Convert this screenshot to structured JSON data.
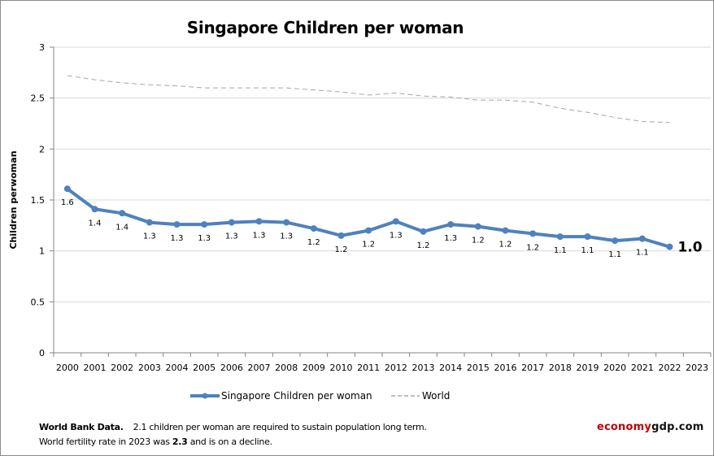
{
  "chart_data": {
    "type": "line",
    "title": "Singapore Children per woman",
    "xlabel": "",
    "ylabel": "Children perwoman",
    "ylim": [
      0,
      3
    ],
    "y_ticks": [
      "0",
      "0.5",
      "1",
      "1.5",
      "2",
      "2.5",
      "3"
    ],
    "y_tick_values": [
      0,
      0.5,
      1,
      1.5,
      2,
      2.5,
      3
    ],
    "grid": true,
    "legend_position": "bottom",
    "categories": [
      "2000",
      "2001",
      "2002",
      "2003",
      "2004",
      "2005",
      "2006",
      "2007",
      "2008",
      "2009",
      "2010",
      "2011",
      "2012",
      "2013",
      "2014",
      "2015",
      "2016",
      "2017",
      "2018",
      "2019",
      "2020",
      "2021",
      "2022",
      "2023"
    ],
    "series": [
      {
        "name": "Singapore Children per woman",
        "color": "#4f81bd",
        "style": "solid-markers",
        "values": [
          1.61,
          1.41,
          1.37,
          1.28,
          1.26,
          1.26,
          1.28,
          1.29,
          1.28,
          1.22,
          1.15,
          1.2,
          1.29,
          1.19,
          1.26,
          1.24,
          1.2,
          1.17,
          1.14,
          1.14,
          1.1,
          1.12,
          1.04,
          null
        ],
        "data_labels": [
          "1.6",
          "1.4",
          "1.4",
          "1.3",
          "1.3",
          "1.3",
          "1.3",
          "1.3",
          "1.3",
          "1.2",
          "1.2",
          "1.2",
          "1.3",
          "1.2",
          "1.3",
          "1.2",
          "1.2",
          "1.2",
          "1.1",
          "1.1",
          "1.1",
          "1.1",
          "1.0",
          ""
        ]
      },
      {
        "name": "World",
        "color": "#a6a6a6",
        "style": "dashed",
        "values": [
          2.72,
          2.68,
          2.65,
          2.63,
          2.62,
          2.6,
          2.6,
          2.6,
          2.6,
          2.58,
          2.56,
          2.53,
          2.55,
          2.52,
          2.51,
          2.48,
          2.48,
          2.46,
          2.4,
          2.36,
          2.31,
          2.27,
          2.26,
          null
        ]
      }
    ]
  },
  "footer": {
    "source_bold": "World Bank Data.",
    "line1_rest": "2.1 children per woman  are required to  sustain population long term.",
    "line2_pre": "World fertility rate in 2023 was ",
    "line2_bold": "2.3",
    "line2_post": " and is on a decline."
  },
  "brand": {
    "part1": "economy",
    "part2": "gdp.com",
    "color1": "#c00000",
    "color2": "#111111"
  }
}
